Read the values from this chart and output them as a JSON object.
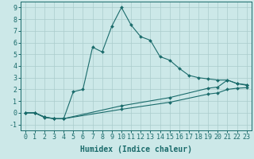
{
  "bg_color": "#cce8e8",
  "line_color": "#1a6b6b",
  "grid_color": "#aacccc",
  "xlabel": "Humidex (Indice chaleur)",
  "xlabel_fontsize": 7,
  "tick_fontsize": 6,
  "xlim": [
    -0.5,
    23.5
  ],
  "ylim": [
    -1.5,
    9.5
  ],
  "yticks": [
    -1,
    0,
    1,
    2,
    3,
    4,
    5,
    6,
    7,
    8,
    9
  ],
  "xticks": [
    0,
    1,
    2,
    3,
    4,
    5,
    6,
    7,
    8,
    9,
    10,
    11,
    12,
    13,
    14,
    15,
    16,
    17,
    18,
    19,
    20,
    21,
    22,
    23
  ],
  "curve1_x": [
    0,
    1,
    2,
    3,
    4,
    5,
    6,
    7,
    8,
    9,
    10,
    11,
    12,
    13,
    14,
    15,
    16,
    17,
    18,
    19,
    20,
    21,
    22,
    23
  ],
  "curve1_y": [
    0.0,
    0.0,
    -0.4,
    -0.5,
    -0.5,
    1.8,
    2.0,
    5.6,
    5.2,
    7.4,
    9.0,
    7.5,
    6.5,
    6.2,
    4.8,
    4.5,
    3.8,
    3.2,
    3.0,
    2.9,
    2.8,
    2.8,
    2.5,
    2.4
  ],
  "curve2_x": [
    0,
    1,
    2,
    3,
    4,
    10,
    15,
    19,
    20,
    21,
    22,
    23
  ],
  "curve2_y": [
    0.0,
    0.0,
    -0.35,
    -0.5,
    -0.5,
    0.6,
    1.3,
    2.1,
    2.2,
    2.8,
    2.5,
    2.35
  ],
  "curve3_x": [
    0,
    1,
    2,
    3,
    4,
    10,
    15,
    19,
    20,
    21,
    22,
    23
  ],
  "curve3_y": [
    0.0,
    0.0,
    -0.35,
    -0.5,
    -0.5,
    0.3,
    0.9,
    1.6,
    1.7,
    2.0,
    2.1,
    2.15
  ],
  "marker": "D",
  "markersize": 2.0,
  "linewidth": 0.8
}
